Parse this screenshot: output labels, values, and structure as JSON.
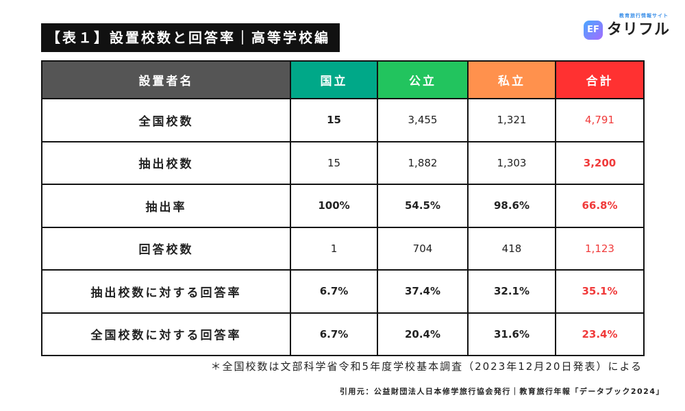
{
  "title": "【表１】設置校数と回答率｜高等学校編",
  "logo": {
    "tagline": "教育旅行情報サイト",
    "icon": "EF",
    "name": "タリフル"
  },
  "colors": {
    "header_label": "#555555",
    "national": "#00a888",
    "public": "#22c45e",
    "private": "#ff914d",
    "total": "#ff3131",
    "total_text": "#f03a3a"
  },
  "table": {
    "headers": [
      "設置者名",
      "国立",
      "公立",
      "私立",
      "合計"
    ],
    "rows": [
      {
        "label": "全国校数",
        "values": [
          "15",
          "3,455",
          "1,321",
          "4,791"
        ],
        "bold": [
          true,
          false,
          false,
          false
        ]
      },
      {
        "label": "抽出校数",
        "values": [
          "15",
          "1,882",
          "1,303",
          "3,200"
        ],
        "bold": [
          false,
          false,
          false,
          true
        ]
      },
      {
        "label": "抽出率",
        "values": [
          "100%",
          "54.5%",
          "98.6%",
          "66.8%"
        ],
        "bold": [
          true,
          true,
          true,
          true
        ]
      },
      {
        "label": "回答校数",
        "values": [
          "1",
          "704",
          "418",
          "1,123"
        ],
        "bold": [
          false,
          false,
          false,
          false
        ]
      },
      {
        "label": "抽出校数に対する回答率",
        "values": [
          "6.7%",
          "37.4%",
          "32.1%",
          "35.1%"
        ],
        "bold": [
          true,
          true,
          true,
          true
        ]
      },
      {
        "label": "全国校数に対する回答率",
        "values": [
          "6.7%",
          "20.4%",
          "31.6%",
          "23.4%"
        ],
        "bold": [
          true,
          true,
          true,
          true
        ]
      }
    ]
  },
  "note": "＊全国校数は文部科学省令和5年度学校基本調査（2023年12月20日発表）による",
  "source": "引用元：公益財団法人日本修学旅行協会発行｜教育旅行年報「データブック2024」"
}
